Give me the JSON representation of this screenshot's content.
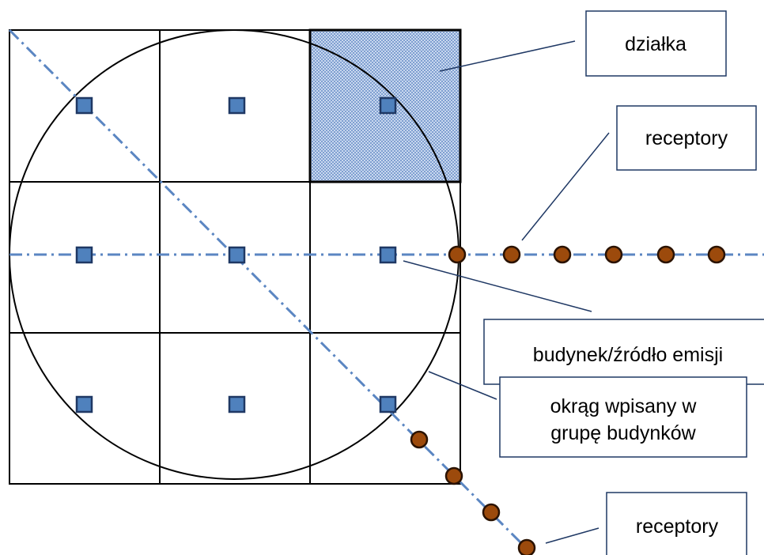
{
  "labels": {
    "plot": "działka",
    "receptors_top": "receptory",
    "building": "budynek/źródło emisji",
    "circle_line1": "okrąg wpisany w",
    "circle_line2": "grupę budynków",
    "receptors_bottom": "receptory"
  },
  "colors": {
    "grid": "#000000",
    "building_fill": "#4f81bd",
    "building_stroke": "#1f3864",
    "receptor_fill": "#9c4a0c",
    "receptor_stroke": "#2a1200",
    "dash_line": "#5b86c2",
    "plot_fill": "#b8cbe8",
    "leader": "#1f3864"
  }
}
